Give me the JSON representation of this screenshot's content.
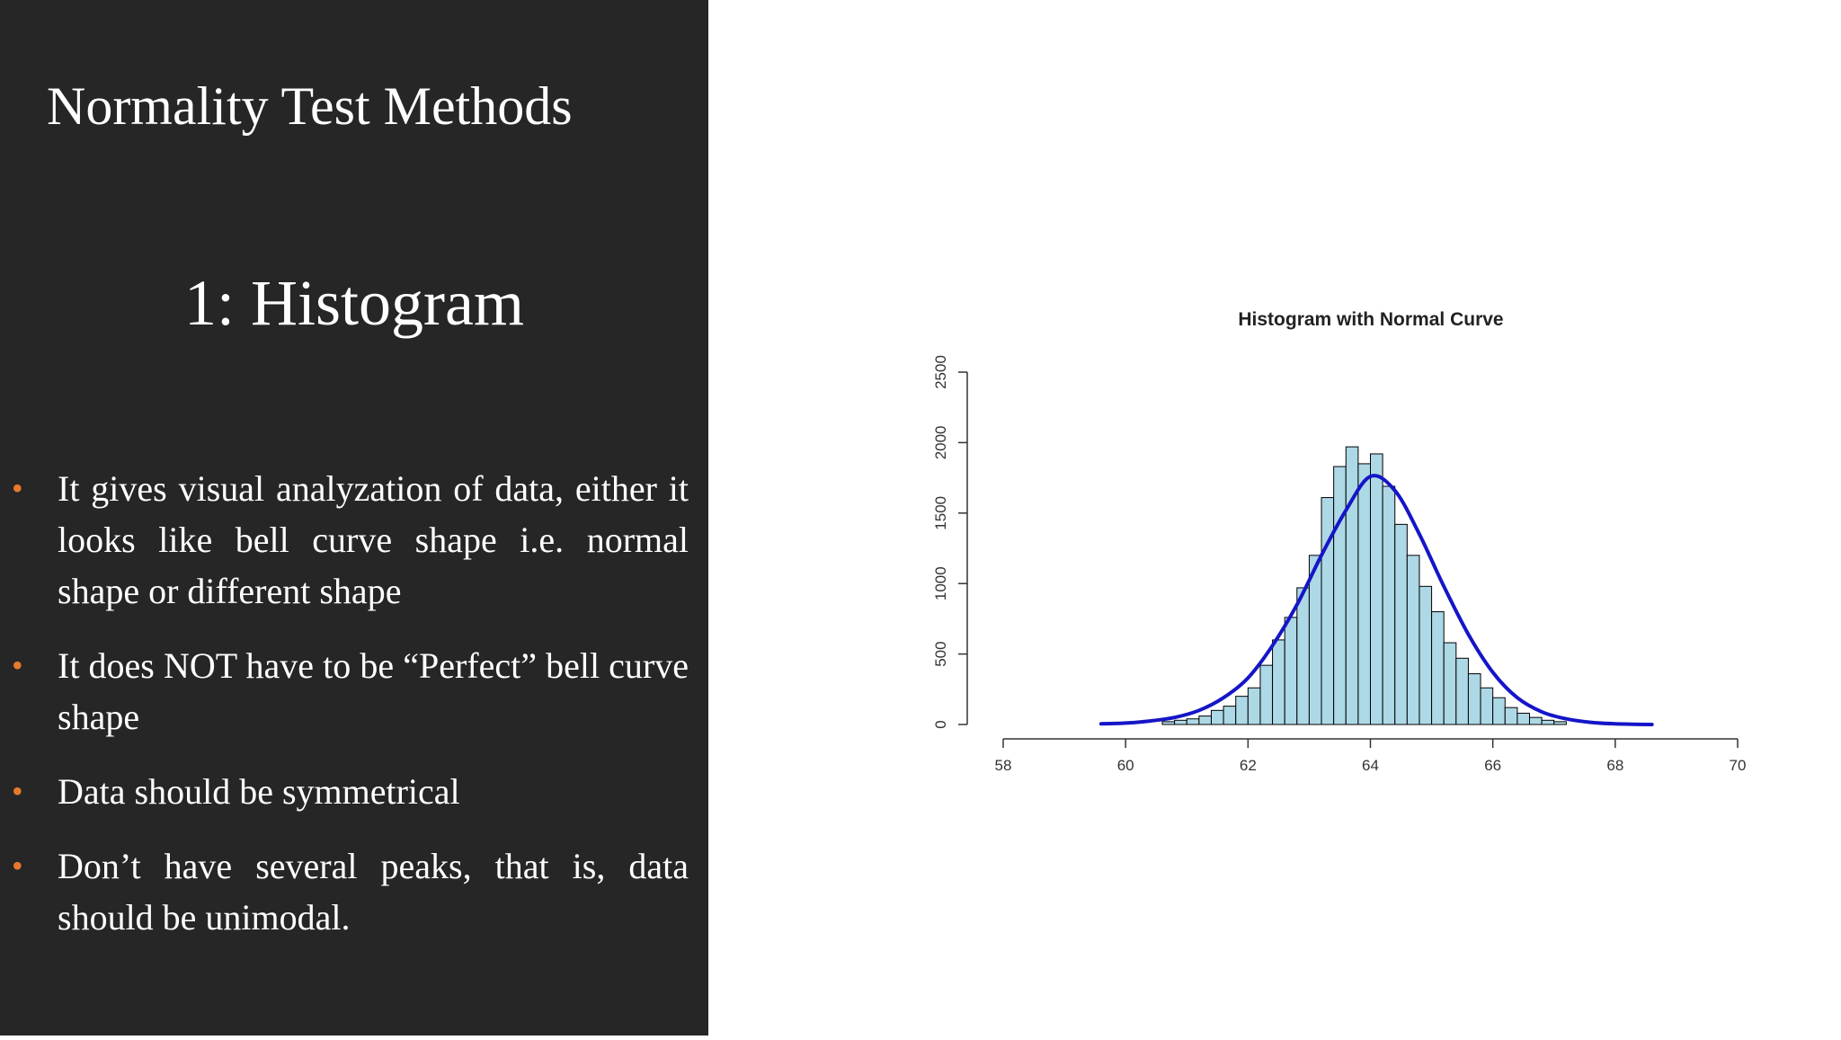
{
  "slide": {
    "title": "Normality Test Methods",
    "section_heading": "1: Histogram",
    "bullets": [
      "It gives visual analyzation of data, either it looks like bell curve shape i.e. normal shape or different shape",
      "It does NOT have to be “Perfect” bell curve shape",
      "Data should be symmetrical",
      "Don’t have several peaks, that is, data should be unimodal."
    ],
    "bullet_color": "#e8792c",
    "panel_color": "#262626"
  },
  "chart_data": {
    "type": "bar",
    "title": "Histogram with Normal Curve",
    "xlabel": "",
    "ylabel": "",
    "xlim": [
      58,
      70
    ],
    "ylim": [
      0,
      2500
    ],
    "xticks": [
      58,
      60,
      62,
      64,
      66,
      68,
      70
    ],
    "yticks": [
      0,
      500,
      1000,
      1500,
      2000,
      2500
    ],
    "bin_width": 0.2,
    "bins_start": [
      60.6,
      60.8,
      61.0,
      61.2,
      61.4,
      61.6,
      61.8,
      62.0,
      62.2,
      62.4,
      62.6,
      62.8,
      63.0,
      63.2,
      63.4,
      63.6,
      63.8,
      64.0,
      64.2,
      64.4,
      64.6,
      64.8,
      65.0,
      65.2,
      65.4,
      65.6,
      65.8,
      66.0,
      66.2,
      66.4,
      66.6,
      66.8,
      67.0
    ],
    "counts": [
      20,
      30,
      40,
      60,
      100,
      130,
      200,
      260,
      420,
      600,
      760,
      970,
      1200,
      1610,
      1830,
      1970,
      1850,
      1920,
      1690,
      1420,
      1200,
      980,
      800,
      580,
      470,
      360,
      260,
      190,
      120,
      80,
      50,
      30,
      20
    ],
    "curve": {
      "x": [
        59.6,
        60.0,
        60.4,
        60.8,
        61.2,
        61.6,
        62.0,
        62.4,
        62.8,
        63.2,
        63.6,
        64.0,
        64.4,
        64.8,
        65.2,
        65.6,
        66.0,
        66.4,
        66.8,
        67.2,
        67.6,
        68.0,
        68.6
      ],
      "y": [
        5,
        10,
        25,
        50,
        100,
        190,
        330,
        560,
        850,
        1200,
        1520,
        1760,
        1660,
        1350,
        980,
        640,
        370,
        190,
        90,
        40,
        15,
        5,
        0
      ]
    },
    "bar_color": "#add8e6",
    "bar_edge_color": "#000000",
    "curve_color": "#1515c8",
    "grid": false,
    "legend": "none"
  }
}
